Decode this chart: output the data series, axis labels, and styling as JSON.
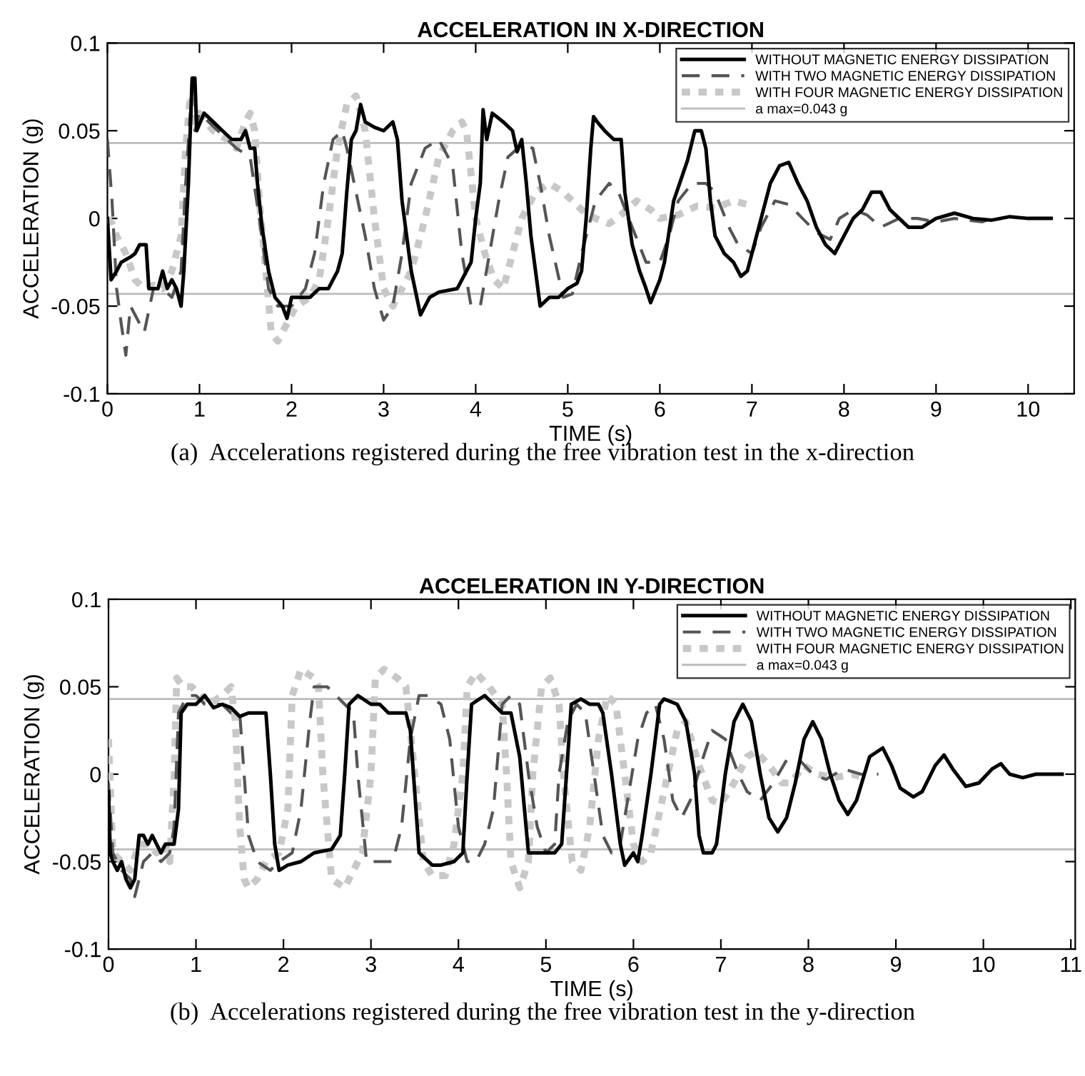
{
  "chart_data": [
    {
      "type": "line",
      "title": "ACCELERATION IN X-DIRECTION",
      "xlabel": "TIME (s)",
      "ylabel": "ACCELERATION (g)",
      "xlim": [
        0,
        10.5
      ],
      "ylim": [
        -0.1,
        0.1
      ],
      "xticks": [
        0,
        1,
        2,
        3,
        4,
        5,
        6,
        7,
        8,
        9,
        10
      ],
      "yticks": [
        -0.1,
        -0.05,
        0,
        0.05,
        0.1
      ],
      "grid": false,
      "legend": "top right",
      "annotations": [
        "(a)  Accelerations registered during the free vibration test in the x-direction"
      ],
      "ref_lines": [
        {
          "axis": "y",
          "value": 0.043,
          "label": "a max=0.043 g",
          "color": "#bbbbbb"
        },
        {
          "axis": "y",
          "value": -0.043,
          "color": "#bbbbbb"
        }
      ],
      "series": [
        {
          "name": "WITHOUT MAGNETIC ENERGY DISSIPATION",
          "color": "#000000",
          "line_style": "solid",
          "x": [
            0,
            0.04,
            0.1,
            0.15,
            0.25,
            0.3,
            0.35,
            0.42,
            0.45,
            0.55,
            0.6,
            0.65,
            0.7,
            0.75,
            0.8,
            0.83,
            0.88,
            0.9,
            0.92,
            0.95,
            0.97,
            1.05,
            1.15,
            1.25,
            1.35,
            1.45,
            1.5,
            1.55,
            1.6,
            1.63,
            1.68,
            1.75,
            1.82,
            1.9,
            1.95,
            2.0,
            2.1,
            2.2,
            2.3,
            2.4,
            2.5,
            2.55,
            2.6,
            2.65,
            2.7,
            2.75,
            2.8,
            2.9,
            3.0,
            3.1,
            3.15,
            3.2,
            3.3,
            3.4,
            3.5,
            3.6,
            3.8,
            3.95,
            4.0,
            4.05,
            4.08,
            4.12,
            4.18,
            4.3,
            4.4,
            4.45,
            4.5,
            4.55,
            4.6,
            4.65,
            4.7,
            4.8,
            4.9,
            5.0,
            5.1,
            5.15,
            5.2,
            5.25,
            5.28,
            5.32,
            5.4,
            5.5,
            5.58,
            5.62,
            5.7,
            5.78,
            5.85,
            5.9,
            6.0,
            6.05,
            6.15,
            6.3,
            6.38,
            6.45,
            6.5,
            6.55,
            6.6,
            6.7,
            6.8,
            6.88,
            6.95,
            7.1,
            7.2,
            7.3,
            7.4,
            7.5,
            7.6,
            7.7,
            7.8,
            7.9,
            8.0,
            8.1,
            8.2,
            8.3,
            8.4,
            8.5,
            8.6,
            8.7,
            8.85,
            9.0,
            9.2,
            9.4,
            9.6,
            9.8,
            10.0,
            10.25
          ],
          "values": [
            0,
            -0.035,
            -0.03,
            -0.025,
            -0.022,
            -0.02,
            -0.015,
            -0.015,
            -0.04,
            -0.04,
            -0.03,
            -0.04,
            -0.035,
            -0.04,
            -0.05,
            -0.03,
            0.02,
            0.05,
            0.08,
            0.08,
            0.05,
            0.06,
            0.055,
            0.05,
            0.045,
            0.045,
            0.05,
            0.04,
            0.04,
            0.02,
            -0.005,
            -0.03,
            -0.045,
            -0.05,
            -0.057,
            -0.045,
            -0.045,
            -0.045,
            -0.04,
            -0.04,
            -0.03,
            -0.02,
            0.015,
            0.045,
            0.05,
            0.065,
            0.055,
            0.052,
            0.05,
            0.055,
            0.045,
            0.01,
            -0.03,
            -0.055,
            -0.045,
            -0.042,
            -0.04,
            -0.025,
            0,
            0.02,
            0.062,
            0.045,
            0.06,
            0.055,
            0.05,
            0.038,
            0.045,
            0.02,
            -0.01,
            -0.03,
            -0.05,
            -0.045,
            -0.045,
            -0.04,
            -0.037,
            -0.03,
            0,
            0.04,
            0.058,
            0.055,
            0.05,
            0.045,
            0.045,
            0.015,
            -0.015,
            -0.03,
            -0.04,
            -0.048,
            -0.035,
            -0.025,
            0.01,
            0.033,
            0.05,
            0.05,
            0.04,
            0.01,
            -0.01,
            -0.02,
            -0.025,
            -0.033,
            -0.03,
            0,
            0.02,
            0.03,
            0.032,
            0.02,
            0.01,
            -0.005,
            -0.015,
            -0.02,
            -0.01,
            0,
            0.005,
            0.015,
            0.015,
            0.005,
            0,
            -0.005,
            -0.005,
            0,
            0.003,
            0,
            -0.001,
            0.001,
            0,
            0
          ]
        },
        {
          "name": "WITH TWO MAGNETIC ENERGY DISSIPATION",
          "color": "#555555",
          "line_style": "dashed",
          "x": [
            0,
            0.05,
            0.1,
            0.15,
            0.2,
            0.25,
            0.3,
            0.4,
            0.5,
            0.6,
            0.7,
            0.8,
            0.85,
            0.9,
            0.95,
            1.0,
            1.2,
            1.4,
            1.55,
            1.65,
            1.75,
            1.85,
            2.0,
            2.15,
            2.25,
            2.35,
            2.45,
            2.55,
            2.6,
            2.7,
            2.8,
            2.9,
            3.0,
            3.1,
            3.2,
            3.3,
            3.45,
            3.6,
            3.75,
            3.85,
            3.95,
            4.05,
            4.15,
            4.25,
            4.35,
            4.5,
            4.62,
            4.7,
            4.8,
            4.95,
            5.05,
            5.15,
            5.3,
            5.45,
            5.55,
            5.7,
            5.85,
            6.0,
            6.1,
            6.2,
            6.35,
            6.5,
            6.6,
            6.75,
            6.85,
            7.0,
            7.1,
            7.25,
            7.4,
            7.55,
            7.7,
            7.85,
            7.95,
            8.1,
            8.25,
            8.4,
            8.6,
            8.8,
            9.0,
            9.2,
            9.5,
            9.6
          ],
          "values": [
            0.045,
            0.01,
            -0.04,
            -0.06,
            -0.078,
            -0.05,
            -0.055,
            -0.065,
            -0.04,
            -0.04,
            -0.045,
            -0.03,
            0.02,
            0.06,
            0.05,
            0.06,
            0.05,
            0.04,
            0.035,
            0,
            -0.04,
            -0.05,
            -0.05,
            -0.04,
            -0.02,
            0.02,
            0.045,
            0.05,
            0.04,
            0.015,
            -0.01,
            -0.04,
            -0.058,
            -0.05,
            -0.02,
            0.02,
            0.04,
            0.045,
            0.03,
            -0.02,
            -0.05,
            -0.05,
            -0.02,
            0.01,
            0.035,
            0.042,
            0.04,
            0.02,
            -0.01,
            -0.045,
            -0.043,
            -0.02,
            0.01,
            0.02,
            0.015,
            -0.005,
            -0.025,
            -0.025,
            -0.01,
            0.01,
            0.02,
            0.02,
            0.015,
            -0.005,
            -0.015,
            -0.02,
            -0.005,
            0.01,
            0.008,
            0,
            -0.008,
            -0.012,
            0,
            0.005,
            0.002,
            -0.005,
            0,
            0,
            -0.002,
            0,
            -0.002,
            0
          ]
        },
        {
          "name": "WITH FOUR MAGNETIC ENERGY DISSIPATION",
          "color": "#c8c8c8",
          "line_style": "dotted",
          "x": [
            0,
            0.05,
            0.1,
            0.2,
            0.3,
            0.4,
            0.5,
            0.6,
            0.7,
            0.8,
            0.85,
            0.9,
            0.95,
            1.0,
            1.15,
            1.3,
            1.4,
            1.5,
            1.55,
            1.6,
            1.65,
            1.72,
            1.78,
            1.85,
            1.95,
            2.05,
            2.2,
            2.3,
            2.4,
            2.5,
            2.6,
            2.7,
            2.8,
            2.9,
            3.0,
            3.1,
            3.2,
            3.3,
            3.45,
            3.6,
            3.75,
            3.85,
            3.9,
            4.0,
            4.1,
            4.2,
            4.3,
            4.4,
            4.5,
            4.65,
            4.8,
            4.95,
            5.05,
            5.15,
            5.3,
            5.45,
            5.6,
            5.75,
            5.9,
            6.0,
            6.2,
            6.4,
            6.6,
            6.8,
            6.95
          ],
          "values": [
            0,
            -0.003,
            -0.01,
            -0.02,
            -0.035,
            -0.04,
            -0.038,
            -0.04,
            -0.03,
            -0.01,
            0.04,
            0.07,
            0.055,
            0.06,
            0.05,
            0.045,
            0.04,
            0.055,
            0.06,
            0.05,
            0.01,
            -0.03,
            -0.065,
            -0.07,
            -0.06,
            -0.05,
            -0.045,
            -0.035,
            0,
            0.04,
            0.065,
            0.07,
            0.05,
            0,
            -0.04,
            -0.05,
            -0.04,
            -0.03,
            0,
            0.035,
            0.05,
            0.055,
            0.05,
            0,
            -0.02,
            -0.035,
            -0.04,
            -0.02,
            0,
            0.015,
            0.02,
            0.015,
            0.01,
            0.005,
            0,
            -0.003,
            0.003,
            0.01,
            0.005,
            0,
            0.002,
            0.007,
            0.006,
            0.01,
            0.008
          ]
        }
      ]
    },
    {
      "type": "line",
      "title": "ACCELERATION IN Y-DIRECTION",
      "xlabel": "TIME (s)",
      "ylabel": "ACCELERATION (g)",
      "xlim": [
        0,
        11.05
      ],
      "ylim": [
        -0.1,
        0.1
      ],
      "xticks": [
        0,
        1,
        2,
        3,
        4,
        5,
        6,
        7,
        8,
        9,
        10,
        11
      ],
      "yticks": [
        -0.1,
        -0.05,
        0,
        0.05,
        0.1
      ],
      "grid": false,
      "legend": "top right",
      "annotations": [
        "(b)  Accelerations registered during the free vibration test in the y-direction"
      ],
      "ref_lines": [
        {
          "axis": "y",
          "value": 0.043,
          "label": "a max=0.043 g",
          "color": "#bbbbbb"
        },
        {
          "axis": "y",
          "value": -0.043,
          "color": "#bbbbbb"
        }
      ],
      "series": [
        {
          "name": "WITHOUT MAGNETIC ENERGY DISSIPATION",
          "color": "#000000",
          "line_style": "solid",
          "x": [
            0,
            0.02,
            0.05,
            0.1,
            0.15,
            0.2,
            0.25,
            0.3,
            0.35,
            0.4,
            0.45,
            0.5,
            0.55,
            0.6,
            0.65,
            0.7,
            0.75,
            0.8,
            0.83,
            0.9,
            1.0,
            1.1,
            1.2,
            1.3,
            1.4,
            1.5,
            1.6,
            1.7,
            1.8,
            1.85,
            1.9,
            1.95,
            2.05,
            2.2,
            2.35,
            2.55,
            2.65,
            2.7,
            2.75,
            2.85,
            3.0,
            3.1,
            3.2,
            3.3,
            3.4,
            3.45,
            3.5,
            3.55,
            3.7,
            3.8,
            3.95,
            4.05,
            4.1,
            4.15,
            4.3,
            4.4,
            4.5,
            4.6,
            4.7,
            4.8,
            4.95,
            5.1,
            5.18,
            5.29,
            5.4,
            5.5,
            5.6,
            5.65,
            5.75,
            5.85,
            5.9,
            6.0,
            6.05,
            6.1,
            6.2,
            6.3,
            6.35,
            6.5,
            6.6,
            6.7,
            6.75,
            6.8,
            6.9,
            6.95,
            7.05,
            7.15,
            7.25,
            7.35,
            7.45,
            7.55,
            7.65,
            7.75,
            7.85,
            7.95,
            8.05,
            8.15,
            8.25,
            8.35,
            8.45,
            8.55,
            8.7,
            8.85,
            8.95,
            9.05,
            9.2,
            9.3,
            9.45,
            9.55,
            9.65,
            9.8,
            9.95,
            10.1,
            10.2,
            10.3,
            10.45,
            10.6,
            10.8,
            10.9
          ],
          "values": [
            -0.01,
            -0.045,
            -0.05,
            -0.055,
            -0.05,
            -0.06,
            -0.065,
            -0.06,
            -0.035,
            -0.035,
            -0.04,
            -0.035,
            -0.04,
            -0.045,
            -0.04,
            -0.04,
            -0.04,
            -0.02,
            0.035,
            0.04,
            0.04,
            0.045,
            0.038,
            0.04,
            0.038,
            0.033,
            0.035,
            0.035,
            0.035,
            0,
            -0.04,
            -0.055,
            -0.052,
            -0.05,
            -0.045,
            -0.043,
            -0.035,
            0,
            0.04,
            0.045,
            0.04,
            0.04,
            0.035,
            0.035,
            0.035,
            0.025,
            -0.01,
            -0.045,
            -0.052,
            -0.052,
            -0.05,
            -0.045,
            0,
            0.04,
            0.045,
            0.04,
            0.035,
            0.035,
            0.01,
            -0.045,
            -0.045,
            -0.045,
            -0.04,
            0.04,
            0.043,
            0.04,
            0.04,
            0.035,
            0,
            -0.04,
            -0.052,
            -0.045,
            -0.05,
            -0.035,
            0,
            0.04,
            0.043,
            0.04,
            0.03,
            0,
            -0.035,
            -0.045,
            -0.045,
            -0.04,
            0,
            0.03,
            0.04,
            0.03,
            0,
            -0.025,
            -0.033,
            -0.025,
            -0.005,
            0.02,
            0.03,
            0.02,
            0,
            -0.015,
            -0.023,
            -0.015,
            0.01,
            0.015,
            0.005,
            -0.008,
            -0.013,
            -0.01,
            0.005,
            0.011,
            0.003,
            -0.007,
            -0.005,
            0.003,
            0.006,
            0,
            -0.002,
            0,
            0,
            0
          ]
        },
        {
          "name": "WITH TWO MAGNETIC ENERGY DISSIPATION",
          "color": "#555555",
          "line_style": "dashed",
          "x": [
            0,
            0.05,
            0.15,
            0.25,
            0.3,
            0.4,
            0.5,
            0.6,
            0.7,
            0.75,
            0.8,
            0.9,
            1.0,
            1.1,
            1.2,
            1.3,
            1.4,
            1.5,
            1.55,
            1.6,
            1.7,
            1.85,
            1.95,
            2.1,
            2.2,
            2.3,
            2.35,
            2.5,
            2.6,
            2.7,
            2.8,
            2.85,
            2.95,
            3.1,
            3.25,
            3.35,
            3.45,
            3.55,
            3.65,
            3.8,
            3.9,
            4.0,
            4.1,
            4.2,
            4.3,
            4.4,
            4.5,
            4.6,
            4.7,
            4.8,
            4.9,
            5.0,
            5.1,
            5.15,
            5.25,
            5.35,
            5.45,
            5.55,
            5.65,
            5.75,
            5.85,
            5.95,
            6.05,
            6.15,
            6.25,
            6.35,
            6.45,
            6.55,
            6.65,
            6.8,
            6.9,
            7.05,
            7.2,
            7.3,
            7.45,
            7.6,
            7.75,
            7.9,
            8.05,
            8.2,
            8.4,
            8.6,
            8.8
          ],
          "values": [
            -0.005,
            -0.045,
            -0.055,
            -0.06,
            -0.07,
            -0.05,
            -0.045,
            -0.05,
            -0.045,
            -0.03,
            0.035,
            0.045,
            0.045,
            0.04,
            0.04,
            0.04,
            0.035,
            0.035,
            0,
            -0.035,
            -0.05,
            -0.055,
            -0.05,
            -0.045,
            -0.02,
            0.03,
            0.05,
            0.05,
            0.045,
            0.04,
            0.035,
            0,
            -0.05,
            -0.05,
            -0.05,
            -0.03,
            0.02,
            0.045,
            0.045,
            0.04,
            0.02,
            -0.03,
            -0.05,
            -0.05,
            -0.04,
            -0.02,
            0.04,
            0.045,
            0.04,
            0,
            -0.03,
            -0.045,
            -0.04,
            0,
            0.03,
            0.04,
            0.035,
            0,
            -0.035,
            -0.045,
            -0.04,
            -0.01,
            0.02,
            0.035,
            0.04,
            0.02,
            -0.015,
            -0.025,
            -0.015,
            0.01,
            0.025,
            0.02,
            0,
            -0.01,
            -0.015,
            -0.005,
            0.008,
            0.008,
            0,
            -0.003,
            0.003,
            0,
            0
          ]
        },
        {
          "name": "WITH FOUR MAGNETIC ENERGY DISSIPATION",
          "color": "#c8c8c8",
          "line_style": "dotted",
          "x": [
            0,
            0.05,
            0.15,
            0.25,
            0.35,
            0.45,
            0.55,
            0.65,
            0.7,
            0.75,
            0.78,
            0.85,
            0.95,
            1.05,
            1.15,
            1.3,
            1.4,
            1.45,
            1.5,
            1.55,
            1.6,
            1.7,
            1.8,
            1.95,
            2.05,
            2.1,
            2.2,
            2.35,
            2.4,
            2.45,
            2.55,
            2.7,
            2.8,
            2.9,
            3.0,
            3.05,
            3.15,
            3.3,
            3.4,
            3.5,
            3.6,
            3.7,
            3.85,
            3.95,
            4.05,
            4.1,
            4.2,
            4.35,
            4.5,
            4.55,
            4.6,
            4.7,
            4.8,
            4.85,
            4.95,
            5.05,
            5.15,
            5.2,
            5.3,
            5.4,
            5.5,
            5.6,
            5.7,
            5.8,
            5.9,
            6.0,
            6.1,
            6.2,
            6.35,
            6.5,
            6.6,
            6.75,
            6.9,
            7.0,
            7.15,
            7.3,
            7.4,
            7.55,
            7.7,
            7.8,
            7.95,
            8.1,
            8.3,
            8.5,
            8.65
          ],
          "values": [
            0.02,
            -0.045,
            -0.05,
            -0.055,
            -0.04,
            -0.04,
            -0.045,
            -0.04,
            -0.05,
            0,
            0.055,
            0.05,
            0.05,
            0.045,
            0.04,
            0.045,
            0.05,
            0.03,
            -0.03,
            -0.06,
            -0.065,
            -0.06,
            -0.05,
            -0.045,
            -0.02,
            0.045,
            0.06,
            0.055,
            0.05,
            0,
            -0.06,
            -0.065,
            -0.055,
            -0.045,
            0,
            0.055,
            0.06,
            0.055,
            0.05,
            0,
            -0.05,
            -0.058,
            -0.058,
            -0.04,
            0,
            0.05,
            0.058,
            0.05,
            0.04,
            0,
            -0.05,
            -0.065,
            -0.05,
            0,
            0.05,
            0.055,
            0.04,
            0,
            -0.05,
            -0.055,
            -0.03,
            0.02,
            0.045,
            0.04,
            0,
            -0.04,
            -0.05,
            -0.045,
            -0.01,
            0.025,
            0.03,
            0.005,
            -0.015,
            -0.017,
            -0.005,
            0.01,
            0.013,
            0.005,
            -0.005,
            -0.005,
            0.005,
            0,
            -0.002,
            0,
            -0.002
          ]
        }
      ]
    }
  ]
}
